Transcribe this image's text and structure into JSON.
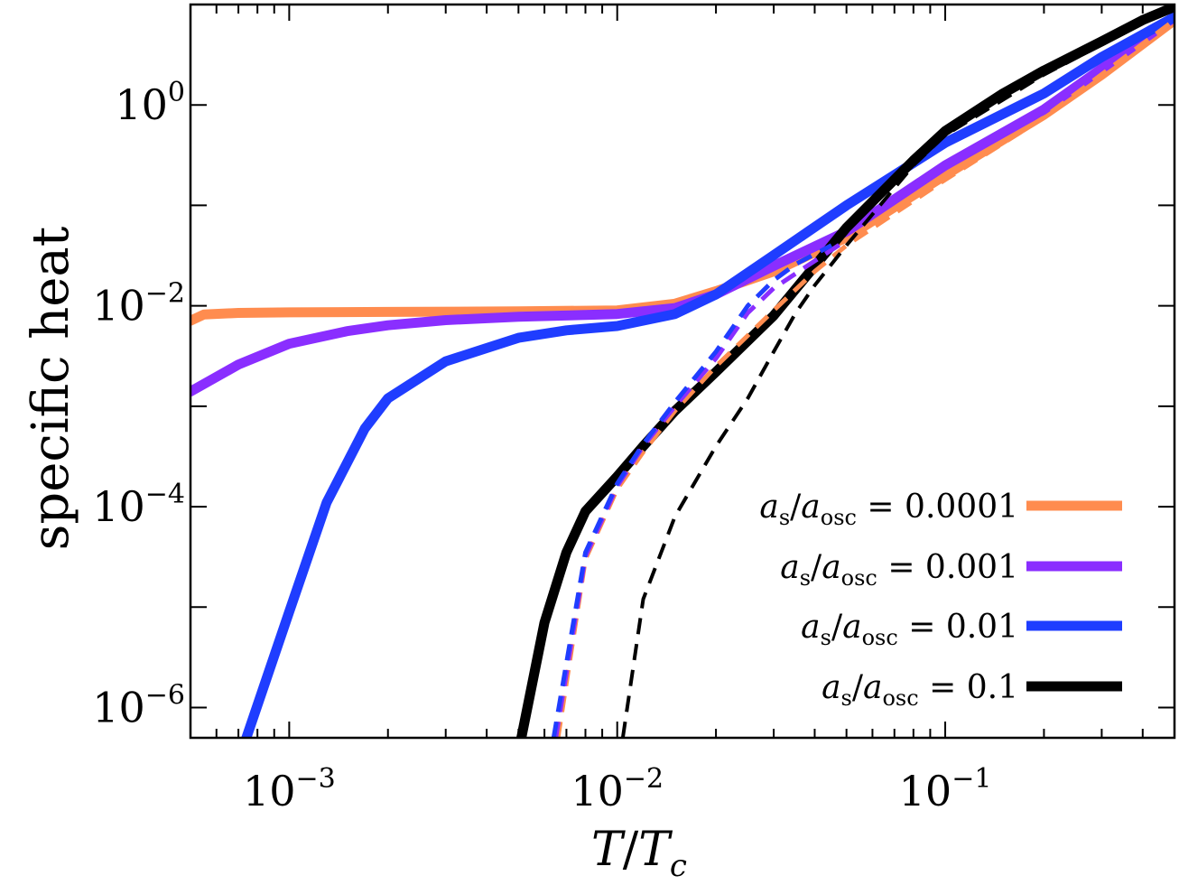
{
  "chart_data": {
    "type": "line",
    "title": "",
    "xlabel": {
      "base": "T",
      "sub": "",
      "sep": "/",
      "base2": "T",
      "sub2": "c"
    },
    "ylabel": "specific heat",
    "xscale": "log",
    "yscale": "log",
    "xlim": [
      0.0005,
      0.5
    ],
    "ylim": [
      5e-07,
      10
    ],
    "grid": false,
    "x_ticks": [
      {
        "value": 0.001,
        "base": "10",
        "exp": "−3"
      },
      {
        "value": 0.01,
        "base": "10",
        "exp": "−2"
      },
      {
        "value": 0.1,
        "base": "10",
        "exp": "−1"
      }
    ],
    "y_ticks": [
      {
        "value": 1e-06,
        "base": "10",
        "exp": "−6"
      },
      {
        "value": 0.0001,
        "base": "10",
        "exp": "−4"
      },
      {
        "value": 0.01,
        "base": "10",
        "exp": "−2"
      },
      {
        "value": 1,
        "base": "10",
        "exp": "0"
      }
    ],
    "legend_position": "lower-right",
    "legend": [
      {
        "a": "a",
        "s": "s",
        "slash": "/",
        "b": "a",
        "osc": "osc",
        "eq": " = ",
        "value": "0.0001",
        "color": "#ff8c4f"
      },
      {
        "a": "a",
        "s": "s",
        "slash": "/",
        "b": "a",
        "osc": "osc",
        "eq": " = ",
        "value": "0.001",
        "color": "#8a2eff"
      },
      {
        "a": "a",
        "s": "s",
        "slash": "/",
        "b": "a",
        "osc": "osc",
        "eq": " = ",
        "value": "0.01",
        "color": "#1f3dff"
      },
      {
        "a": "a",
        "s": "s",
        "slash": "/",
        "b": "a",
        "osc": "osc",
        "eq": " = ",
        "value": "0.1",
        "color": "#000000"
      }
    ],
    "series": [
      {
        "style": "solid",
        "color": "#ff8c4f",
        "width": 11,
        "points": [
          [
            0.0005,
            0.0071
          ],
          [
            0.00055,
            0.0082
          ],
          [
            0.0007,
            0.0085
          ],
          [
            0.001,
            0.0086
          ],
          [
            0.002,
            0.0087
          ],
          [
            0.005,
            0.0088
          ],
          [
            0.01,
            0.009
          ],
          [
            0.015,
            0.0105
          ],
          [
            0.02,
            0.014
          ],
          [
            0.03,
            0.022
          ],
          [
            0.05,
            0.048
          ],
          [
            0.1,
            0.2
          ],
          [
            0.2,
            0.8
          ],
          [
            0.3,
            2.0
          ],
          [
            0.5,
            7.0
          ]
        ]
      },
      {
        "style": "solid",
        "color": "#8a2eff",
        "width": 11,
        "points": [
          [
            0.0005,
            0.0014
          ],
          [
            0.0007,
            0.0026
          ],
          [
            0.001,
            0.0042
          ],
          [
            0.0015,
            0.0056
          ],
          [
            0.002,
            0.0064
          ],
          [
            0.003,
            0.0072
          ],
          [
            0.005,
            0.0078
          ],
          [
            0.008,
            0.0081
          ],
          [
            0.01,
            0.0083
          ],
          [
            0.015,
            0.0095
          ],
          [
            0.02,
            0.013
          ],
          [
            0.03,
            0.025
          ],
          [
            0.05,
            0.055
          ],
          [
            0.1,
            0.25
          ],
          [
            0.2,
            0.9
          ],
          [
            0.5,
            7.5
          ]
        ]
      },
      {
        "style": "solid",
        "color": "#1f3dff",
        "width": 11,
        "points": [
          [
            0.00074,
            5e-07
          ],
          [
            0.001,
            9e-06
          ],
          [
            0.0013,
            0.00011
          ],
          [
            0.0017,
            0.0006
          ],
          [
            0.002,
            0.0012
          ],
          [
            0.003,
            0.0028
          ],
          [
            0.005,
            0.0048
          ],
          [
            0.007,
            0.0057
          ],
          [
            0.01,
            0.0063
          ],
          [
            0.015,
            0.0083
          ],
          [
            0.02,
            0.013
          ],
          [
            0.03,
            0.032
          ],
          [
            0.05,
            0.1
          ],
          [
            0.1,
            0.42
          ],
          [
            0.2,
            1.3
          ],
          [
            0.3,
            3.0
          ],
          [
            0.5,
            7.5
          ]
        ]
      },
      {
        "style": "solid",
        "color": "#000000",
        "width": 11,
        "points": [
          [
            0.0051,
            5e-07
          ],
          [
            0.006,
            7e-06
          ],
          [
            0.007,
            3.5e-05
          ],
          [
            0.008,
            9e-05
          ],
          [
            0.01,
            0.0002
          ],
          [
            0.012,
            0.0004
          ],
          [
            0.015,
            0.0009
          ],
          [
            0.02,
            0.0022
          ],
          [
            0.03,
            0.008
          ],
          [
            0.05,
            0.06
          ],
          [
            0.08,
            0.28
          ],
          [
            0.1,
            0.55
          ],
          [
            0.15,
            1.3
          ],
          [
            0.2,
            2.2
          ],
          [
            0.3,
            4.3
          ],
          [
            0.4,
            7.0
          ],
          [
            0.5,
            9.5
          ]
        ]
      },
      {
        "style": "dashed",
        "color": "#ff8c4f",
        "width": 5,
        "points": [
          [
            0.0066,
            5e-07
          ],
          [
            0.008,
            3e-05
          ],
          [
            0.01,
            0.00015
          ],
          [
            0.012,
            0.00035
          ],
          [
            0.015,
            0.0009
          ],
          [
            0.02,
            0.0025
          ],
          [
            0.03,
            0.009
          ],
          [
            0.04,
            0.022
          ],
          [
            0.05,
            0.04
          ],
          [
            0.1,
            0.18
          ],
          [
            0.2,
            0.75
          ],
          [
            0.5,
            7.0
          ]
        ]
      },
      {
        "style": "dashed",
        "color": "#8a2eff",
        "width": 5,
        "points": [
          [
            0.0065,
            5e-07
          ],
          [
            0.008,
            3.2e-05
          ],
          [
            0.01,
            0.00016
          ],
          [
            0.012,
            0.0004
          ],
          [
            0.015,
            0.001
          ],
          [
            0.02,
            0.003
          ],
          [
            0.025,
            0.0085
          ],
          [
            0.03,
            0.015
          ],
          [
            0.04,
            0.028
          ],
          [
            0.05,
            0.045
          ]
        ]
      },
      {
        "style": "dashed",
        "color": "#1f3dff",
        "width": 5,
        "points": [
          [
            0.0064,
            5e-07
          ],
          [
            0.008,
            3.5e-05
          ],
          [
            0.01,
            0.00017
          ],
          [
            0.012,
            0.00042
          ],
          [
            0.015,
            0.0011
          ],
          [
            0.02,
            0.0035
          ],
          [
            0.025,
            0.01
          ],
          [
            0.03,
            0.018
          ],
          [
            0.035,
            0.026
          ],
          [
            0.045,
            0.04
          ]
        ]
      },
      {
        "style": "dashed",
        "color": "#000000",
        "width": 4,
        "points": [
          [
            0.0104,
            5e-07
          ],
          [
            0.012,
            1.2e-05
          ],
          [
            0.015,
            8e-05
          ],
          [
            0.02,
            0.0004
          ],
          [
            0.025,
            0.0012
          ],
          [
            0.03,
            0.0035
          ],
          [
            0.035,
            0.0085
          ],
          [
            0.04,
            0.016
          ],
          [
            0.05,
            0.04
          ],
          [
            0.08,
            0.25
          ],
          [
            0.1,
            0.5
          ],
          [
            0.2,
            2.0
          ],
          [
            0.5,
            9.5
          ]
        ]
      }
    ]
  }
}
